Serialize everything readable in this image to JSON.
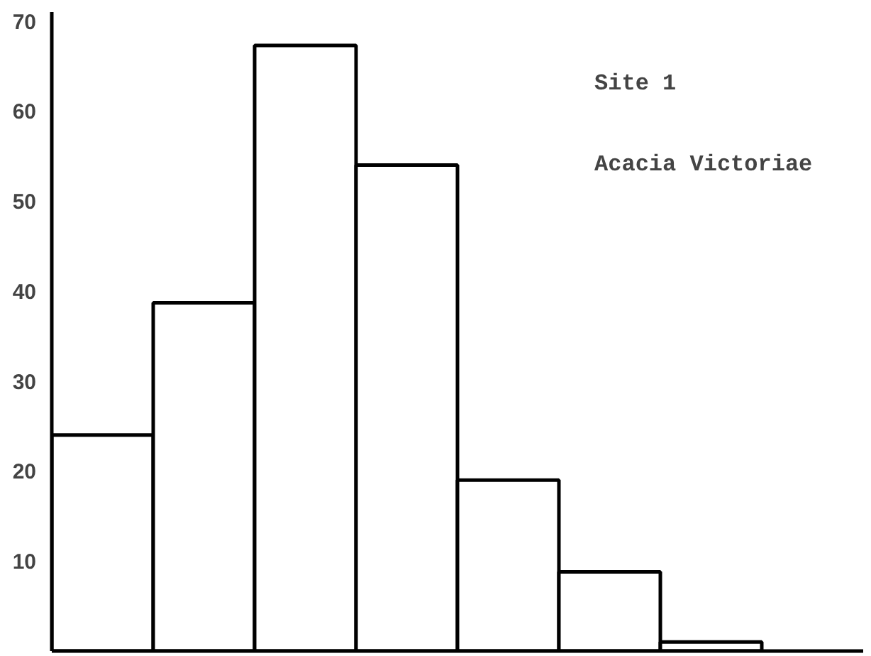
{
  "chart_data": {
    "type": "bar",
    "categories": [
      null,
      null,
      null,
      null,
      null,
      null,
      null,
      null
    ],
    "values": [
      24,
      38.7,
      67.3,
      54,
      19,
      8.8,
      1,
      null
    ],
    "color": "#ffffff",
    "ylim": [
      0,
      71
    ],
    "yticks": [
      10,
      20,
      30,
      40,
      50,
      60,
      70
    ],
    "grid": false,
    "annotations": [
      "Site 1",
      "Acacia Victoriae"
    ]
  }
}
